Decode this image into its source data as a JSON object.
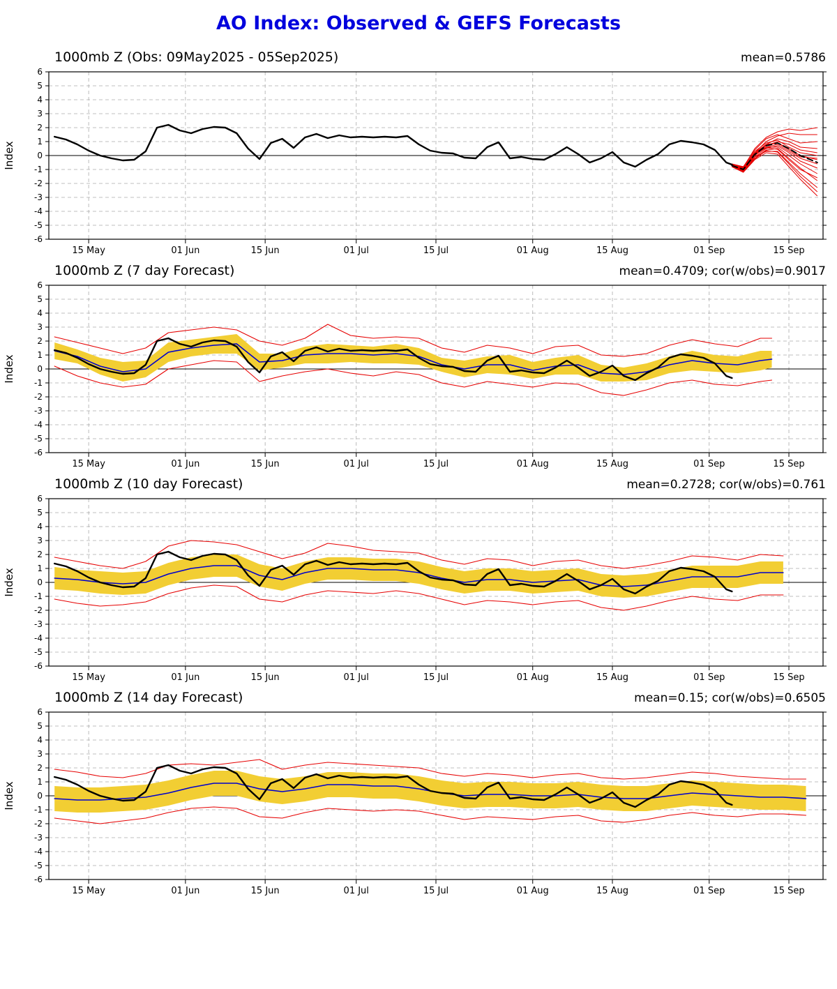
{
  "page_title": "AO Index: Observed & GEFS Forecasts",
  "chart_data": {
    "type": "line",
    "title": "AO Index: Observed & GEFS Forecasts",
    "colors": {
      "title": "#0000dd",
      "observed": "#000000",
      "forecast_mean": "#0000cc",
      "ensemble_red": "#e60000",
      "spread_band": "#F2CE33",
      "grid": "#aaaaaa"
    },
    "axis": {
      "ylabel": "Index",
      "ylim": [
        -6,
        6
      ],
      "xlim": [
        -1,
        135
      ],
      "grid": "dashed",
      "x_unit": "days since 09 May 2025",
      "xticks": [
        {
          "day": 6,
          "label": "15 May"
        },
        {
          "day": 23,
          "label": "01 Jun"
        },
        {
          "day": 37,
          "label": "15 Jun"
        },
        {
          "day": 53,
          "label": "01 Jul"
        },
        {
          "day": 67,
          "label": "15 Jul"
        },
        {
          "day": 84,
          "label": "01 Aug"
        },
        {
          "day": 98,
          "label": "15 Aug"
        },
        {
          "day": 115,
          "label": "01 Sep"
        },
        {
          "day": 129,
          "label": "15 Sep"
        }
      ]
    },
    "panels": [
      {
        "title": "1000mb Z (Obs: 09May2025 - 05Sep2025)",
        "stats": "mean=0.5786",
        "series": [
          {
            "type": "multiline",
            "x_ref": "ens_x",
            "ys_ref": "ensemble_members",
            "color": "#e60000",
            "width": 1
          },
          {
            "type": "line",
            "x_ref": "ens_x",
            "y_ref": "ensemble_mean",
            "color": "#000000",
            "width": 2,
            "dash": "8,5"
          },
          {
            "type": "line",
            "x_ref": "obs_x",
            "y_ref": "obs_y",
            "color": "#000000",
            "width": 2.4
          }
        ]
      },
      {
        "title": "1000mb Z (7 day Forecast)",
        "stats": "mean=0.4709; cor(w/obs)=0.9017",
        "series": [
          {
            "type": "band",
            "x_ref": "f7_x",
            "upper_ref": "f7_band_upper",
            "lower_ref": "f7_band_lower",
            "color": "#F2CE33"
          },
          {
            "type": "line",
            "x_ref": "f7_x",
            "y_ref": "f7_red_upper",
            "color": "#e60000",
            "width": 1.1
          },
          {
            "type": "line",
            "x_ref": "f7_x",
            "y_ref": "f7_red_lower",
            "color": "#e60000",
            "width": 1.1
          },
          {
            "type": "line",
            "x_ref": "f7_x",
            "y_ref": "f7_mean",
            "color": "#0000cc",
            "width": 1.6
          },
          {
            "type": "line",
            "x_ref": "obs_x",
            "y_ref": "obs_y",
            "color": "#000000",
            "width": 2.4
          }
        ]
      },
      {
        "title": "1000mb Z (10 day Forecast)",
        "stats": "mean=0.2728; cor(w/obs)=0.761",
        "series": [
          {
            "type": "band",
            "x_ref": "f10_x",
            "upper_ref": "f10_band_upper",
            "lower_ref": "f10_band_lower",
            "color": "#F2CE33"
          },
          {
            "type": "line",
            "x_ref": "f10_x",
            "y_ref": "f10_red_upper",
            "color": "#e60000",
            "width": 1.1
          },
          {
            "type": "line",
            "x_ref": "f10_x",
            "y_ref": "f10_red_lower",
            "color": "#e60000",
            "width": 1.1
          },
          {
            "type": "line",
            "x_ref": "f10_x",
            "y_ref": "f10_mean",
            "color": "#0000cc",
            "width": 1.6
          },
          {
            "type": "line",
            "x_ref": "obs_x",
            "y_ref": "obs_y",
            "color": "#000000",
            "width": 2.4
          }
        ]
      },
      {
        "title": "1000mb Z (14 day Forecast)",
        "stats": "mean=0.15; cor(w/obs)=0.6505",
        "series": [
          {
            "type": "band",
            "x_ref": "f14_x",
            "upper_ref": "f14_band_upper",
            "lower_ref": "f14_band_lower",
            "color": "#F2CE33"
          },
          {
            "type": "line",
            "x_ref": "f14_x",
            "y_ref": "f14_red_upper",
            "color": "#e60000",
            "width": 1.1
          },
          {
            "type": "line",
            "x_ref": "f14_x",
            "y_ref": "f14_red_lower",
            "color": "#e60000",
            "width": 1.1
          },
          {
            "type": "line",
            "x_ref": "f14_x",
            "y_ref": "f14_mean",
            "color": "#0000cc",
            "width": 1.6
          },
          {
            "type": "line",
            "x_ref": "obs_x",
            "y_ref": "obs_y",
            "color": "#000000",
            "width": 2.4
          }
        ]
      }
    ],
    "series_data": {
      "obs_x": [
        0,
        2,
        4,
        6,
        8,
        10,
        12,
        14,
        16,
        18,
        20,
        22,
        24,
        26,
        28,
        30,
        32,
        34,
        36,
        38,
        40,
        42,
        44,
        46,
        48,
        50,
        52,
        54,
        56,
        58,
        60,
        62,
        64,
        66,
        68,
        70,
        72,
        74,
        76,
        78,
        80,
        82,
        84,
        86,
        88,
        90,
        92,
        94,
        96,
        98,
        100,
        102,
        104,
        106,
        108,
        110,
        112,
        114,
        116,
        118,
        119
      ],
      "obs_y": [
        1.35,
        1.15,
        0.8,
        0.35,
        0.0,
        -0.2,
        -0.35,
        -0.3,
        0.3,
        2.0,
        2.2,
        1.8,
        1.6,
        1.9,
        2.05,
        2.0,
        1.6,
        0.5,
        -0.25,
        0.9,
        1.2,
        0.55,
        1.3,
        1.55,
        1.25,
        1.45,
        1.3,
        1.35,
        1.3,
        1.35,
        1.3,
        1.4,
        0.8,
        0.35,
        0.2,
        0.15,
        -0.15,
        -0.2,
        0.6,
        0.95,
        -0.2,
        -0.1,
        -0.25,
        -0.3,
        0.1,
        0.6,
        0.1,
        -0.5,
        -0.2,
        0.25,
        -0.5,
        -0.8,
        -0.3,
        0.1,
        0.8,
        1.05,
        0.95,
        0.8,
        0.4,
        -0.5,
        -0.65
      ],
      "ens_x": [
        119,
        121,
        123,
        125,
        127,
        129,
        131,
        134
      ],
      "ensemble_mean": [
        -0.72,
        -1.0,
        0.08,
        0.7,
        0.9,
        0.5,
        0.0,
        -0.5
      ],
      "ensemble_members": [
        [
          -0.7,
          -1.0,
          0.2,
          1.0,
          1.4,
          1.6,
          1.5,
          1.5
        ],
        [
          -0.7,
          -0.8,
          0.4,
          1.2,
          1.5,
          1.2,
          0.9,
          1.0
        ],
        [
          -0.6,
          -0.9,
          0.1,
          0.8,
          1.2,
          1.0,
          0.6,
          0.5
        ],
        [
          -0.7,
          -1.1,
          0.0,
          0.7,
          1.0,
          0.8,
          0.4,
          0.2
        ],
        [
          -0.8,
          -0.9,
          0.3,
          0.9,
          1.1,
          0.6,
          0.2,
          0.0
        ],
        [
          -0.6,
          -0.8,
          0.2,
          0.8,
          0.9,
          0.5,
          0.0,
          -0.3
        ],
        [
          -0.7,
          -1.0,
          0.1,
          0.6,
          0.8,
          0.3,
          -0.2,
          -0.6
        ],
        [
          -0.8,
          -1.2,
          -0.1,
          0.5,
          0.7,
          0.2,
          -0.4,
          -0.9
        ],
        [
          -0.7,
          -0.9,
          0.0,
          0.6,
          0.6,
          0.0,
          -0.6,
          -1.3
        ],
        [
          -0.8,
          -1.1,
          -0.2,
          0.4,
          0.5,
          -0.2,
          -0.9,
          -1.8
        ],
        [
          -0.7,
          -1.0,
          -0.1,
          0.3,
          0.3,
          -0.5,
          -1.3,
          -2.3
        ],
        [
          -0.8,
          -1.2,
          -0.3,
          0.2,
          0.1,
          -0.8,
          -1.7,
          -2.9
        ],
        [
          -0.65,
          -0.85,
          0.5,
          1.3,
          1.7,
          1.9,
          1.8,
          2.0
        ],
        [
          -0.75,
          -1.05,
          0.15,
          0.75,
          0.9,
          0.4,
          -0.1,
          -0.2
        ],
        [
          -0.7,
          -0.95,
          0.05,
          0.55,
          0.45,
          -0.3,
          -1.0,
          -1.6
        ],
        [
          -0.75,
          -1.15,
          -0.25,
          0.35,
          0.25,
          -0.6,
          -1.5,
          -2.6
        ]
      ],
      "f7_x": [
        0,
        4,
        8,
        12,
        16,
        20,
        24,
        28,
        32,
        36,
        40,
        44,
        48,
        52,
        56,
        60,
        64,
        68,
        72,
        76,
        80,
        84,
        88,
        92,
        96,
        100,
        104,
        108,
        112,
        116,
        120,
        124,
        126
      ],
      "f7_mean": [
        1.3,
        0.9,
        0.2,
        -0.2,
        0.0,
        1.2,
        1.5,
        1.7,
        1.8,
        0.5,
        0.6,
        1.0,
        1.1,
        1.1,
        1.0,
        1.1,
        0.9,
        0.3,
        0.0,
        0.3,
        0.3,
        -0.1,
        0.2,
        0.3,
        -0.3,
        -0.4,
        -0.2,
        0.3,
        0.6,
        0.4,
        0.3,
        0.6,
        0.7
      ],
      "f7_band_upper": [
        1.9,
        1.4,
        0.8,
        0.5,
        0.6,
        1.9,
        2.1,
        2.3,
        2.5,
        1.1,
        1.1,
        1.6,
        1.8,
        1.7,
        1.6,
        1.8,
        1.5,
        0.8,
        0.6,
        0.9,
        1.0,
        0.5,
        0.8,
        1.0,
        0.3,
        0.1,
        0.4,
        0.9,
        1.3,
        1.0,
        0.9,
        1.3,
        1.3
      ],
      "f7_band_lower": [
        0.7,
        0.4,
        -0.4,
        -0.9,
        -0.6,
        0.5,
        0.9,
        1.1,
        1.1,
        -0.1,
        0.1,
        0.4,
        0.4,
        0.5,
        0.4,
        0.4,
        0.3,
        -0.2,
        -0.6,
        -0.3,
        -0.4,
        -0.7,
        -0.4,
        -0.4,
        -0.9,
        -0.9,
        -0.8,
        -0.3,
        -0.1,
        -0.2,
        -0.3,
        -0.1,
        0.1
      ],
      "f7_red_upper": [
        2.3,
        1.9,
        1.5,
        1.1,
        1.5,
        2.6,
        2.8,
        3.0,
        2.8,
        2.0,
        1.7,
        2.2,
        3.2,
        2.4,
        2.2,
        2.3,
        2.2,
        1.5,
        1.2,
        1.7,
        1.5,
        1.1,
        1.6,
        1.7,
        1.0,
        0.9,
        1.1,
        1.7,
        2.1,
        1.8,
        1.6,
        2.2,
        2.2
      ],
      "f7_red_lower": [
        0.2,
        -0.5,
        -1.0,
        -1.3,
        -1.1,
        0.0,
        0.3,
        0.6,
        0.5,
        -0.9,
        -0.5,
        -0.2,
        0.0,
        -0.3,
        -0.5,
        -0.2,
        -0.4,
        -1.0,
        -1.3,
        -0.9,
        -1.1,
        -1.3,
        -1.0,
        -1.1,
        -1.7,
        -1.9,
        -1.5,
        -1.0,
        -0.8,
        -1.1,
        -1.2,
        -0.9,
        -0.8
      ],
      "f10_x": [
        0,
        4,
        8,
        12,
        16,
        20,
        24,
        28,
        32,
        36,
        40,
        44,
        48,
        52,
        56,
        60,
        64,
        68,
        72,
        76,
        80,
        84,
        88,
        92,
        96,
        100,
        104,
        108,
        112,
        116,
        120,
        124,
        128
      ],
      "f10_mean": [
        0.3,
        0.2,
        0.0,
        -0.1,
        0.0,
        0.6,
        1.0,
        1.2,
        1.2,
        0.5,
        0.2,
        0.7,
        1.0,
        1.0,
        0.9,
        0.9,
        0.7,
        0.3,
        0.0,
        0.2,
        0.2,
        0.0,
        0.1,
        0.2,
        -0.2,
        -0.3,
        -0.2,
        0.1,
        0.4,
        0.4,
        0.4,
        0.7,
        0.7
      ],
      "f10_band_upper": [
        1.1,
        0.9,
        0.8,
        0.7,
        0.8,
        1.4,
        1.8,
        2.0,
        2.0,
        1.3,
        1.0,
        1.5,
        1.8,
        1.8,
        1.7,
        1.7,
        1.5,
        1.1,
        0.8,
        1.0,
        1.0,
        0.8,
        0.9,
        1.0,
        0.6,
        0.5,
        0.6,
        0.9,
        1.2,
        1.2,
        1.2,
        1.5,
        1.5
      ],
      "f10_band_lower": [
        -0.5,
        -0.6,
        -0.8,
        -0.9,
        -0.8,
        -0.2,
        0.2,
        0.4,
        0.4,
        -0.3,
        -0.6,
        -0.1,
        0.2,
        0.2,
        0.1,
        0.1,
        -0.1,
        -0.5,
        -0.8,
        -0.6,
        -0.6,
        -0.8,
        -0.7,
        -0.6,
        -1.0,
        -1.1,
        -1.0,
        -0.7,
        -0.4,
        -0.4,
        -0.4,
        -0.1,
        -0.1
      ],
      "f10_red_upper": [
        1.8,
        1.5,
        1.2,
        1.0,
        1.5,
        2.6,
        3.0,
        2.9,
        2.7,
        2.2,
        1.7,
        2.1,
        2.8,
        2.6,
        2.3,
        2.2,
        2.1,
        1.6,
        1.3,
        1.7,
        1.6,
        1.2,
        1.5,
        1.6,
        1.2,
        1.0,
        1.2,
        1.5,
        1.9,
        1.8,
        1.6,
        2.0,
        1.9
      ],
      "f10_red_lower": [
        -1.2,
        -1.5,
        -1.7,
        -1.6,
        -1.4,
        -0.8,
        -0.4,
        -0.2,
        -0.3,
        -1.2,
        -1.4,
        -0.9,
        -0.6,
        -0.7,
        -0.8,
        -0.6,
        -0.8,
        -1.2,
        -1.6,
        -1.3,
        -1.4,
        -1.6,
        -1.4,
        -1.3,
        -1.8,
        -2.0,
        -1.7,
        -1.3,
        -1.0,
        -1.2,
        -1.3,
        -0.9,
        -0.9
      ],
      "f14_x": [
        0,
        4,
        8,
        12,
        16,
        20,
        24,
        28,
        32,
        36,
        40,
        44,
        48,
        52,
        56,
        60,
        64,
        68,
        72,
        76,
        80,
        84,
        88,
        92,
        96,
        100,
        104,
        108,
        112,
        116,
        120,
        124,
        128,
        132
      ],
      "f14_mean": [
        -0.2,
        -0.3,
        -0.3,
        -0.2,
        -0.1,
        0.2,
        0.6,
        0.9,
        0.9,
        0.5,
        0.3,
        0.5,
        0.8,
        0.8,
        0.7,
        0.7,
        0.5,
        0.2,
        0.0,
        0.1,
        0.1,
        0.0,
        0.0,
        0.1,
        -0.1,
        -0.2,
        -0.2,
        0.0,
        0.2,
        0.1,
        0.0,
        -0.1,
        -0.1,
        -0.2
      ],
      "f14_band_upper": [
        0.7,
        0.6,
        0.6,
        0.7,
        0.8,
        1.1,
        1.5,
        1.8,
        1.8,
        1.4,
        1.2,
        1.4,
        1.7,
        1.7,
        1.6,
        1.6,
        1.4,
        1.1,
        0.9,
        1.0,
        1.0,
        0.9,
        0.9,
        1.0,
        0.8,
        0.7,
        0.7,
        0.9,
        1.1,
        1.0,
        0.9,
        0.8,
        0.8,
        0.7
      ],
      "f14_band_lower": [
        -1.1,
        -1.2,
        -1.2,
        -1.1,
        -1.0,
        -0.7,
        -0.3,
        0.0,
        0.0,
        -0.4,
        -0.6,
        -0.4,
        -0.1,
        -0.1,
        -0.2,
        -0.2,
        -0.4,
        -0.7,
        -0.9,
        -0.8,
        -0.8,
        -0.9,
        -0.9,
        -0.8,
        -1.0,
        -1.1,
        -1.1,
        -0.9,
        -0.7,
        -0.8,
        -0.9,
        -1.0,
        -1.0,
        -1.1
      ],
      "f14_red_upper": [
        1.9,
        1.7,
        1.4,
        1.3,
        1.6,
        2.2,
        2.3,
        2.2,
        2.4,
        2.6,
        1.9,
        2.2,
        2.4,
        2.3,
        2.2,
        2.1,
        2.0,
        1.6,
        1.4,
        1.6,
        1.5,
        1.3,
        1.5,
        1.6,
        1.3,
        1.2,
        1.3,
        1.5,
        1.7,
        1.6,
        1.4,
        1.3,
        1.2,
        1.2
      ],
      "f14_red_lower": [
        -1.6,
        -1.8,
        -2.0,
        -1.8,
        -1.6,
        -1.2,
        -0.9,
        -0.8,
        -0.9,
        -1.5,
        -1.6,
        -1.2,
        -0.9,
        -1.0,
        -1.1,
        -1.0,
        -1.1,
        -1.4,
        -1.7,
        -1.5,
        -1.6,
        -1.7,
        -1.5,
        -1.4,
        -1.8,
        -1.9,
        -1.7,
        -1.4,
        -1.2,
        -1.4,
        -1.5,
        -1.3,
        -1.3,
        -1.4
      ]
    }
  }
}
